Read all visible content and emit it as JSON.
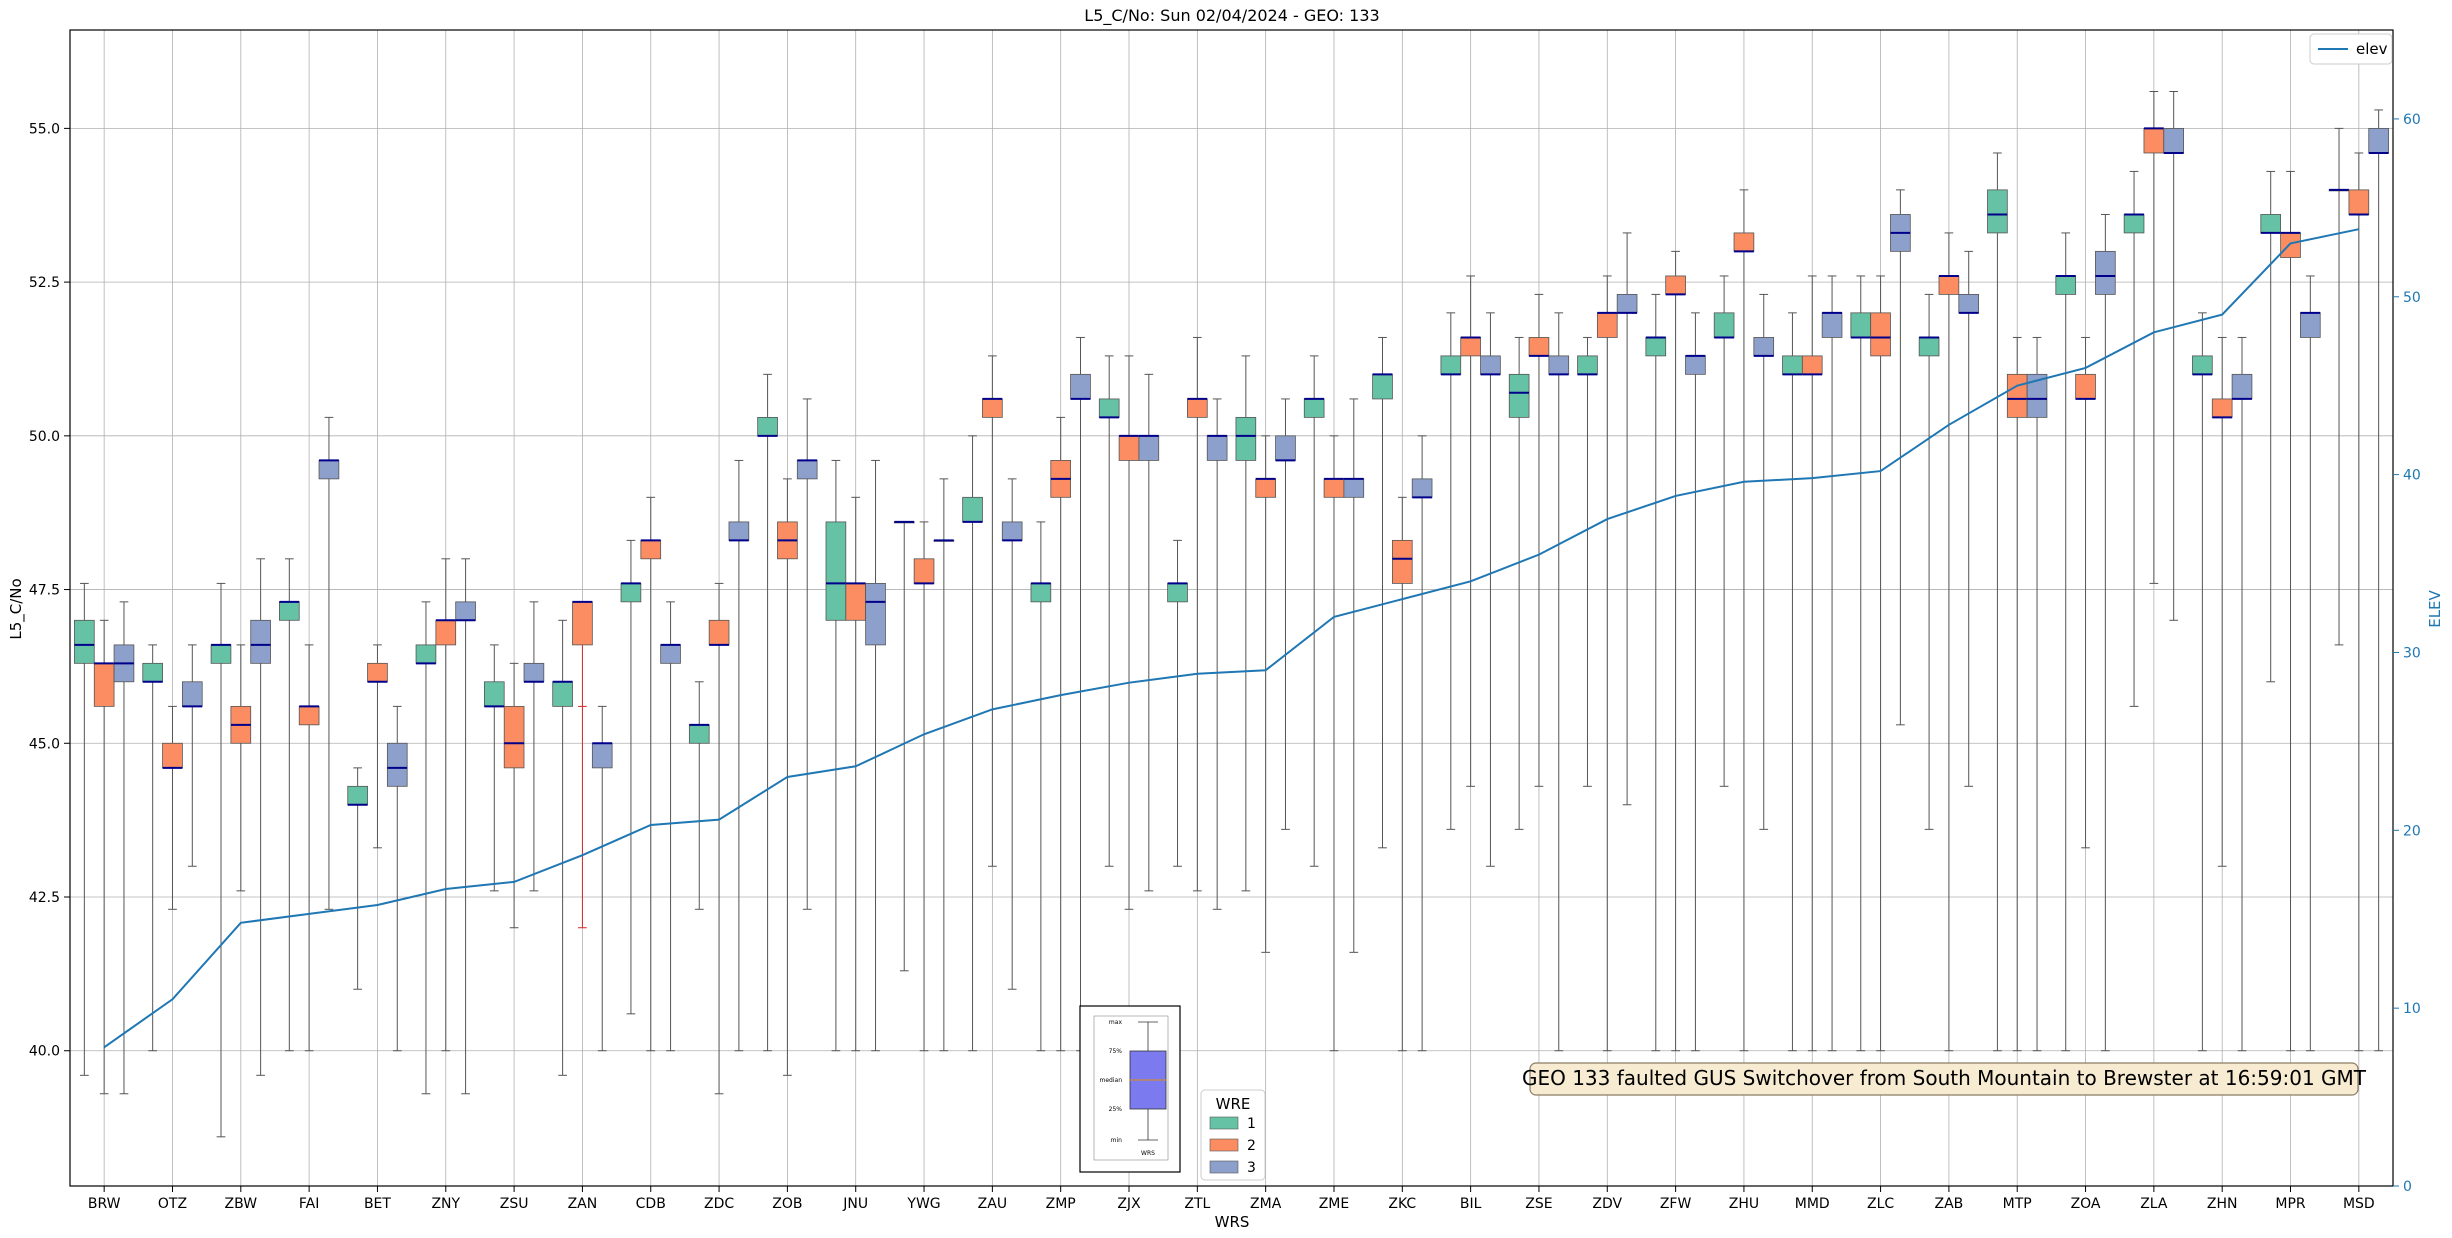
{
  "chart_data": {
    "type": "box",
    "title": "L5_C/No: Sun 02/04/2024 - GEO: 133",
    "xlabel": "WRS",
    "ylabel": "L5_C/No",
    "y2label": "ELEV",
    "ylim": [
      37.8,
      56.6
    ],
    "y2lim": [
      0,
      65
    ],
    "yticks": [
      40.0,
      42.5,
      45.0,
      47.5,
      50.0,
      52.5,
      55.0
    ],
    "ytick_labels": [
      "40.0",
      "42.5",
      "45.0",
      "47.5",
      "50.0",
      "52.5",
      "55.0"
    ],
    "y2ticks": [
      0,
      10,
      20,
      30,
      40,
      50,
      60
    ],
    "y2tick_labels": [
      "0",
      "10",
      "20",
      "30",
      "40",
      "50",
      "60"
    ],
    "grid": true,
    "categories": [
      "BRW",
      "OTZ",
      "ZBW",
      "FAI",
      "BET",
      "ZNY",
      "ZSU",
      "ZAN",
      "CDB",
      "ZDC",
      "ZOB",
      "JNU",
      "YWG",
      "ZAU",
      "ZMP",
      "ZJX",
      "ZTL",
      "ZMA",
      "ZME",
      "ZKC",
      "BIL",
      "ZSE",
      "ZDV",
      "ZFW",
      "ZHU",
      "MMD",
      "ZLC",
      "ZAB",
      "MTP",
      "ZOA",
      "ZLA",
      "ZHN",
      "MPR",
      "MSD"
    ],
    "colors": {
      "1": "#66c2a5",
      "2": "#fc8d62",
      "3": "#8da0cb",
      "median": "#00008b",
      "elev": "#1f77b4",
      "whisker": "#555555",
      "outlier_whisker": "#d62728"
    },
    "legend": {
      "title": "WRE",
      "entries": [
        "1",
        "2",
        "3"
      ],
      "position": "bottom-center"
    },
    "legend_elev": {
      "label": "elev",
      "position": "top-right"
    },
    "boxes": {
      "1": [
        [
          39.6,
          46.3,
          46.6,
          47.0,
          47.6
        ],
        [
          40.0,
          46.0,
          46.0,
          46.3,
          46.6
        ],
        [
          38.6,
          46.3,
          46.6,
          46.6,
          47.6
        ],
        [
          40.0,
          47.0,
          47.3,
          47.3,
          48.0
        ],
        [
          41.0,
          44.0,
          44.0,
          44.3,
          44.6
        ],
        [
          39.3,
          46.3,
          46.3,
          46.6,
          47.3
        ],
        [
          42.6,
          45.6,
          45.6,
          46.0,
          46.6
        ],
        [
          39.6,
          45.6,
          46.0,
          46.0,
          47.0
        ],
        [
          40.6,
          47.3,
          47.6,
          47.6,
          48.3
        ],
        [
          42.3,
          45.0,
          45.3,
          45.3,
          46.0
        ],
        [
          40.0,
          50.0,
          50.0,
          50.3,
          51.0
        ],
        [
          40.0,
          47.0,
          47.6,
          48.6,
          49.6
        ],
        [
          41.3,
          48.6,
          48.6,
          48.6,
          48.6
        ],
        [
          40.0,
          48.6,
          48.6,
          49.0,
          50.0
        ],
        [
          40.0,
          47.3,
          47.6,
          47.6,
          48.6
        ],
        [
          43.0,
          50.3,
          50.3,
          50.6,
          51.3
        ],
        [
          43.0,
          47.3,
          47.6,
          47.6,
          48.3
        ],
        [
          42.6,
          49.6,
          50.0,
          50.3,
          51.3
        ],
        [
          43.0,
          50.3,
          50.6,
          50.6,
          51.3
        ],
        [
          43.3,
          50.6,
          51.0,
          51.0,
          51.6
        ],
        [
          43.6,
          51.0,
          51.0,
          51.3,
          52.0
        ],
        [
          43.6,
          50.3,
          50.7,
          51.0,
          51.6
        ],
        [
          44.3,
          51.0,
          51.0,
          51.3,
          51.6
        ],
        [
          40.0,
          51.3,
          51.6,
          51.6,
          52.3
        ],
        [
          44.3,
          51.6,
          51.6,
          52.0,
          52.6
        ],
        [
          40.0,
          51.0,
          51.0,
          51.3,
          52.0
        ],
        [
          40.0,
          51.6,
          51.6,
          52.0,
          52.6
        ],
        [
          43.6,
          51.3,
          51.6,
          51.6,
          52.3
        ],
        [
          40.0,
          53.3,
          53.6,
          54.0,
          54.6
        ],
        [
          40.0,
          52.3,
          52.6,
          52.6,
          53.3
        ],
        [
          45.6,
          53.3,
          53.6,
          53.6,
          54.3
        ],
        [
          40.0,
          51.0,
          51.0,
          51.3,
          52.0
        ],
        [
          46.0,
          53.3,
          53.3,
          53.6,
          54.3
        ],
        [
          46.6,
          54.0,
          54.0,
          54.0,
          55.0
        ]
      ],
      "2": [
        [
          39.3,
          45.6,
          46.3,
          46.3,
          47.0
        ],
        [
          42.3,
          44.6,
          44.6,
          45.0,
          45.6
        ],
        [
          42.6,
          45.0,
          45.3,
          45.6,
          46.6
        ],
        [
          40.0,
          45.3,
          45.6,
          45.6,
          46.6
        ],
        [
          43.3,
          46.0,
          46.0,
          46.3,
          46.6
        ],
        [
          40.0,
          46.6,
          47.0,
          47.0,
          48.0
        ],
        [
          42.0,
          44.6,
          45.0,
          45.6,
          46.3
        ],
        [
          42.0,
          46.6,
          47.3,
          47.3,
          45.6
        ],
        [
          40.0,
          48.0,
          48.3,
          48.3,
          49.0
        ],
        [
          39.3,
          46.6,
          46.6,
          47.0,
          47.6
        ],
        [
          39.6,
          48.0,
          48.3,
          48.6,
          49.3
        ],
        [
          40.0,
          47.0,
          47.6,
          47.6,
          49.0
        ],
        [
          40.0,
          47.6,
          47.6,
          48.0,
          48.6
        ],
        [
          43.0,
          50.3,
          50.6,
          50.6,
          51.3
        ],
        [
          40.0,
          49.0,
          49.3,
          49.6,
          50.3
        ],
        [
          42.3,
          49.6,
          50.0,
          50.0,
          51.3
        ],
        [
          42.6,
          50.3,
          50.6,
          50.6,
          51.6
        ],
        [
          41.6,
          49.0,
          49.3,
          49.3,
          50.0
        ],
        [
          40.0,
          49.0,
          49.3,
          49.3,
          50.0
        ],
        [
          40.0,
          47.6,
          48.0,
          48.3,
          49.0
        ],
        [
          44.3,
          51.3,
          51.6,
          51.6,
          52.6
        ],
        [
          44.3,
          51.3,
          51.3,
          51.6,
          52.3
        ],
        [
          40.0,
          51.6,
          52.0,
          52.0,
          52.6
        ],
        [
          40.0,
          52.3,
          52.3,
          52.6,
          53.0
        ],
        [
          40.0,
          53.0,
          53.0,
          53.3,
          54.0
        ],
        [
          40.0,
          51.0,
          51.0,
          51.3,
          52.6
        ],
        [
          40.0,
          51.3,
          51.6,
          52.0,
          52.6
        ],
        [
          40.0,
          52.3,
          52.6,
          52.6,
          53.3
        ],
        [
          40.0,
          50.3,
          50.6,
          51.0,
          51.6
        ],
        [
          43.3,
          50.6,
          50.6,
          51.0,
          51.6
        ],
        [
          47.6,
          54.6,
          55.0,
          55.0,
          55.6
        ],
        [
          43.0,
          50.3,
          50.3,
          50.6,
          51.6
        ],
        [
          40.0,
          52.9,
          53.3,
          53.3,
          54.3
        ],
        [
          40.0,
          53.6,
          53.6,
          54.0,
          54.6
        ]
      ],
      "3": [
        [
          39.3,
          46.0,
          46.3,
          46.6,
          47.3
        ],
        [
          43.0,
          45.6,
          45.6,
          46.0,
          46.6
        ],
        [
          39.6,
          46.3,
          46.6,
          47.0,
          48.0
        ],
        [
          42.3,
          49.3,
          49.6,
          49.6,
          50.3
        ],
        [
          40.0,
          44.3,
          44.6,
          45.0,
          45.6
        ],
        [
          39.3,
          47.0,
          47.0,
          47.3,
          48.0
        ],
        [
          42.6,
          46.0,
          46.0,
          46.3,
          47.3
        ],
        [
          40.0,
          44.6,
          45.0,
          45.0,
          45.6
        ],
        [
          40.0,
          46.3,
          46.6,
          46.6,
          47.3
        ],
        [
          40.0,
          48.3,
          48.3,
          48.6,
          49.6
        ],
        [
          42.3,
          49.3,
          49.6,
          49.6,
          50.6
        ],
        [
          40.0,
          46.6,
          47.3,
          47.6,
          49.6
        ],
        [
          40.0,
          48.3,
          48.3,
          48.3,
          49.3
        ],
        [
          41.0,
          48.3,
          48.3,
          48.6,
          49.3
        ],
        [
          40.0,
          50.6,
          50.6,
          51.0,
          51.6
        ],
        [
          42.6,
          49.6,
          50.0,
          50.0,
          51.0
        ],
        [
          42.3,
          49.6,
          50.0,
          50.0,
          50.6
        ],
        [
          43.6,
          49.6,
          49.6,
          50.0,
          50.6
        ],
        [
          41.6,
          49.0,
          49.3,
          49.3,
          50.6
        ],
        [
          40.0,
          49.0,
          49.0,
          49.3,
          50.0
        ],
        [
          43.0,
          51.0,
          51.0,
          51.3,
          52.0
        ],
        [
          40.0,
          51.0,
          51.0,
          51.3,
          52.0
        ],
        [
          44.0,
          52.0,
          52.0,
          52.3,
          53.3
        ],
        [
          40.0,
          51.0,
          51.3,
          51.3,
          52.0
        ],
        [
          43.6,
          51.3,
          51.3,
          51.6,
          52.3
        ],
        [
          40.0,
          51.6,
          52.0,
          52.0,
          52.6
        ],
        [
          45.3,
          53.0,
          53.3,
          53.6,
          54.0
        ],
        [
          44.3,
          52.0,
          52.0,
          52.3,
          53.0
        ],
        [
          40.0,
          50.3,
          50.6,
          51.0,
          51.6
        ],
        [
          40.0,
          52.3,
          52.6,
          53.0,
          53.6
        ],
        [
          47.0,
          54.6,
          54.6,
          55.0,
          55.6
        ],
        [
          40.0,
          50.6,
          50.6,
          51.0,
          51.6
        ],
        [
          40.0,
          51.6,
          52.0,
          52.0,
          52.6
        ],
        [
          40.0,
          54.6,
          54.6,
          55.0,
          55.3
        ]
      ]
    },
    "elev": [
      7.8,
      10.5,
      14.8,
      15.3,
      15.8,
      16.7,
      17.1,
      18.6,
      20.3,
      20.6,
      23.0,
      23.6,
      25.4,
      26.8,
      27.6,
      28.3,
      28.8,
      29.0,
      32.0,
      33.0,
      34.0,
      35.5,
      37.5,
      38.8,
      39.6,
      39.8,
      40.2,
      42.8,
      45.0,
      46.0,
      48.0,
      49.0,
      53.0,
      53.8
    ]
  },
  "annotation": {
    "text": "GEO 133 faulted GUS Switchover from South Mountain to Brewster at 16:59:01 GMT"
  },
  "box_key": {
    "labels": [
      "max",
      "75%",
      "median",
      "25%",
      "min"
    ],
    "caption": "WRS"
  }
}
